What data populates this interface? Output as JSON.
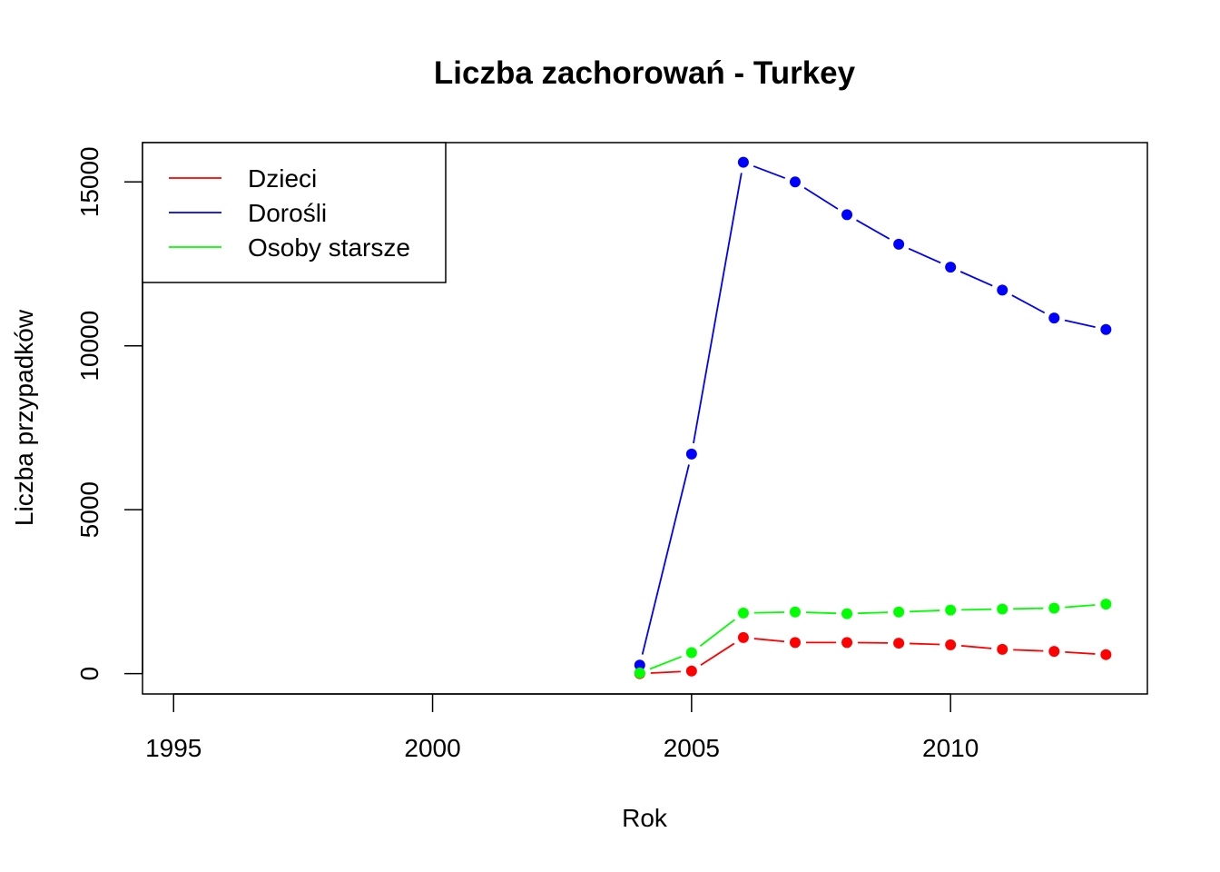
{
  "chart_data": {
    "type": "line",
    "title": "Liczba zachorowań -  Turkey",
    "xlabel": "Rok",
    "ylabel": "Liczba przypadków",
    "xlim": [
      1994.4,
      2013.8
    ],
    "ylim": [
      -620,
      16200
    ],
    "x_ticks": [
      1995,
      2000,
      2005,
      2010
    ],
    "y_ticks": [
      0,
      5000,
      10000,
      15000
    ],
    "grid": false,
    "legend_position": "top-left",
    "x": [
      2004,
      2005,
      2006,
      2007,
      2008,
      2009,
      2010,
      2011,
      2012,
      2013
    ],
    "series": [
      {
        "name": "Dzieci",
        "color": "#ff0000",
        "values": [
          0,
          80,
          1100,
          950,
          950,
          930,
          880,
          740,
          680,
          580
        ]
      },
      {
        "name": "Dorośli",
        "color": "#0000ff",
        "values": [
          260,
          6700,
          15600,
          15000,
          14000,
          13100,
          12400,
          11700,
          10850,
          10500
        ]
      },
      {
        "name": "Osoby starsze",
        "color": "#00ff00",
        "values": [
          20,
          640,
          1850,
          1880,
          1830,
          1880,
          1940,
          1970,
          2000,
          2120
        ]
      }
    ]
  }
}
